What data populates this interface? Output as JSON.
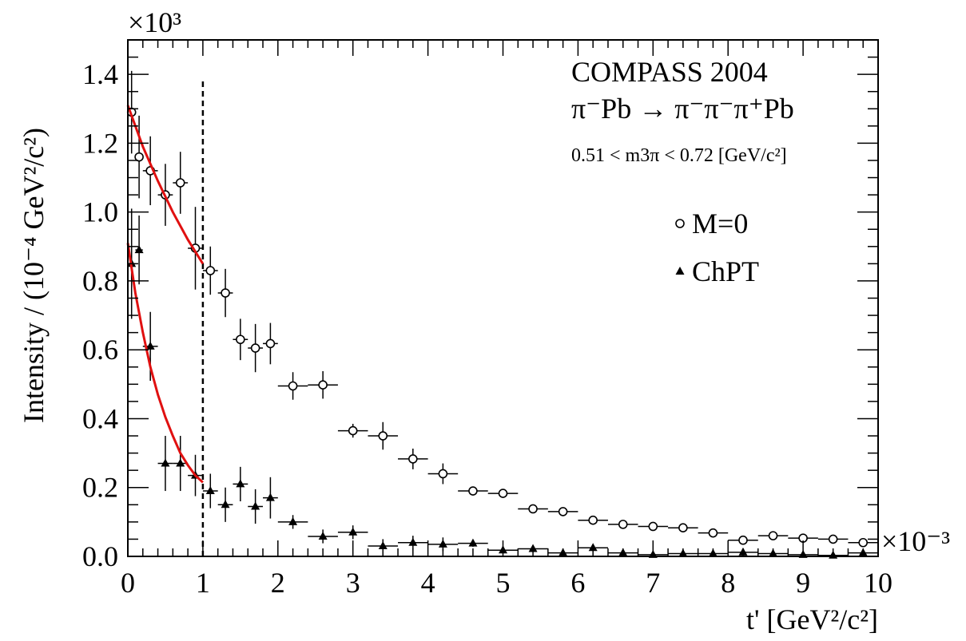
{
  "chart_data": {
    "type": "scatter",
    "title": "",
    "xlabel": "t' [GeV²/c²]",
    "ylabel": "Intensity / (10⁻⁴ GeV²/c²)",
    "x_multiplier": "×10⁻³",
    "y_multiplier": "×10³",
    "xlim": [
      0,
      10
    ],
    "ylim": [
      0,
      1.5
    ],
    "x_ticks": [
      "0",
      "1",
      "2",
      "3",
      "4",
      "5",
      "6",
      "7",
      "8",
      "9",
      "10"
    ],
    "y_ticks": [
      "0.0",
      "0.2",
      "0.4",
      "0.6",
      "0.8",
      "1.0",
      "1.2",
      "1.4"
    ],
    "grid": false,
    "legend_position": "right",
    "annotations": {
      "experiment": "COMPASS 2004",
      "reaction": "π⁻Pb → π⁻π⁻π⁺Pb",
      "mass_range": "0.51 < m3π < 0.72 [GeV/c²]"
    },
    "vline": {
      "x": 1.0,
      "style": "dashed"
    },
    "series": [
      {
        "name": "M=0",
        "marker": "open-circle",
        "points": [
          {
            "x": 0.05,
            "y": 1.29,
            "xerr": 0.05,
            "yerr": 0.12
          },
          {
            "x": 0.15,
            "y": 1.16,
            "xerr": 0.05,
            "yerr": 0.12
          },
          {
            "x": 0.3,
            "y": 1.12,
            "xerr": 0.1,
            "yerr": 0.1
          },
          {
            "x": 0.5,
            "y": 1.05,
            "xerr": 0.1,
            "yerr": 0.09
          },
          {
            "x": 0.7,
            "y": 1.085,
            "xerr": 0.1,
            "yerr": 0.09
          },
          {
            "x": 0.9,
            "y": 0.895,
            "xerr": 0.1,
            "yerr": 0.12
          },
          {
            "x": 1.1,
            "y": 0.83,
            "xerr": 0.1,
            "yerr": 0.07
          },
          {
            "x": 1.3,
            "y": 0.765,
            "xerr": 0.1,
            "yerr": 0.07
          },
          {
            "x": 1.5,
            "y": 0.63,
            "xerr": 0.1,
            "yerr": 0.06
          },
          {
            "x": 1.7,
            "y": 0.605,
            "xerr": 0.1,
            "yerr": 0.07
          },
          {
            "x": 1.9,
            "y": 0.618,
            "xerr": 0.1,
            "yerr": 0.06
          },
          {
            "x": 2.2,
            "y": 0.495,
            "xerr": 0.2,
            "yerr": 0.04
          },
          {
            "x": 2.6,
            "y": 0.498,
            "xerr": 0.2,
            "yerr": 0.04
          },
          {
            "x": 3.0,
            "y": 0.365,
            "xerr": 0.2,
            "yerr": 0.02
          },
          {
            "x": 3.4,
            "y": 0.35,
            "xerr": 0.2,
            "yerr": 0.04
          },
          {
            "x": 3.8,
            "y": 0.283,
            "xerr": 0.2,
            "yerr": 0.03
          },
          {
            "x": 4.2,
            "y": 0.24,
            "xerr": 0.2,
            "yerr": 0.03
          },
          {
            "x": 4.6,
            "y": 0.19,
            "xerr": 0.2,
            "yerr": 0.01
          },
          {
            "x": 5.0,
            "y": 0.183,
            "xerr": 0.2,
            "yerr": 0.01
          },
          {
            "x": 5.4,
            "y": 0.138,
            "xerr": 0.2,
            "yerr": 0.01
          },
          {
            "x": 5.8,
            "y": 0.13,
            "xerr": 0.2,
            "yerr": 0.01
          },
          {
            "x": 6.2,
            "y": 0.105,
            "xerr": 0.2,
            "yerr": 0.01
          },
          {
            "x": 6.6,
            "y": 0.093,
            "xerr": 0.2,
            "yerr": 0.01
          },
          {
            "x": 7.0,
            "y": 0.087,
            "xerr": 0.2,
            "yerr": 0.01
          },
          {
            "x": 7.4,
            "y": 0.083,
            "xerr": 0.2,
            "yerr": 0.01
          },
          {
            "x": 7.8,
            "y": 0.068,
            "xerr": 0.2,
            "yerr": 0.01
          },
          {
            "x": 8.2,
            "y": 0.047,
            "xerr": 0.2,
            "yerr": 0.01
          },
          {
            "x": 8.6,
            "y": 0.06,
            "xerr": 0.2,
            "yerr": 0.01
          },
          {
            "x": 9.0,
            "y": 0.053,
            "xerr": 0.2,
            "yerr": 0.01
          },
          {
            "x": 9.4,
            "y": 0.05,
            "xerr": 0.2,
            "yerr": 0.01
          },
          {
            "x": 9.8,
            "y": 0.04,
            "xerr": 0.2,
            "yerr": 0.01
          }
        ]
      },
      {
        "name": "ChPT",
        "marker": "filled-triangle",
        "points": [
          {
            "x": 0.05,
            "y": 0.85,
            "xerr": 0.05,
            "yerr": 0.16
          },
          {
            "x": 0.15,
            "y": 0.89,
            "xerr": 0.05,
            "yerr": 0.1
          },
          {
            "x": 0.3,
            "y": 0.61,
            "xerr": 0.1,
            "yerr": 0.1
          },
          {
            "x": 0.5,
            "y": 0.27,
            "xerr": 0.1,
            "yerr": 0.08
          },
          {
            "x": 0.7,
            "y": 0.27,
            "xerr": 0.1,
            "yerr": 0.08
          },
          {
            "x": 0.9,
            "y": 0.235,
            "xerr": 0.1,
            "yerr": 0.06
          },
          {
            "x": 1.1,
            "y": 0.19,
            "xerr": 0.1,
            "yerr": 0.05
          },
          {
            "x": 1.3,
            "y": 0.15,
            "xerr": 0.1,
            "yerr": 0.05
          },
          {
            "x": 1.5,
            "y": 0.21,
            "xerr": 0.1,
            "yerr": 0.05
          },
          {
            "x": 1.7,
            "y": 0.145,
            "xerr": 0.1,
            "yerr": 0.05
          },
          {
            "x": 1.9,
            "y": 0.17,
            "xerr": 0.1,
            "yerr": 0.06
          },
          {
            "x": 2.2,
            "y": 0.1,
            "xerr": 0.2,
            "yerr": 0.02
          },
          {
            "x": 2.6,
            "y": 0.058,
            "xerr": 0.2,
            "yerr": 0.02
          },
          {
            "x": 3.0,
            "y": 0.07,
            "xerr": 0.2,
            "yerr": 0.02
          },
          {
            "x": 3.4,
            "y": 0.03,
            "xerr": 0.2,
            "yerr": 0.02
          },
          {
            "x": 3.8,
            "y": 0.04,
            "xerr": 0.2,
            "yerr": 0.02
          },
          {
            "x": 4.2,
            "y": 0.035,
            "xerr": 0.2,
            "yerr": 0.02
          },
          {
            "x": 4.6,
            "y": 0.038,
            "xerr": 0.2,
            "yerr": 0.01
          },
          {
            "x": 5.0,
            "y": 0.018,
            "xerr": 0.2,
            "yerr": 0.01
          },
          {
            "x": 5.4,
            "y": 0.022,
            "xerr": 0.2,
            "yerr": 0.01
          },
          {
            "x": 5.8,
            "y": 0.01,
            "xerr": 0.2,
            "yerr": 0.01
          },
          {
            "x": 6.2,
            "y": 0.025,
            "xerr": 0.2,
            "yerr": 0.01
          },
          {
            "x": 6.6,
            "y": 0.01,
            "xerr": 0.2,
            "yerr": 0.01
          },
          {
            "x": 7.0,
            "y": 0.005,
            "xerr": 0.2,
            "yerr": 0.01
          },
          {
            "x": 7.4,
            "y": 0.008,
            "xerr": 0.2,
            "yerr": 0.01
          },
          {
            "x": 7.8,
            "y": 0.008,
            "xerr": 0.2,
            "yerr": 0.01
          },
          {
            "x": 8.2,
            "y": 0.012,
            "xerr": 0.2,
            "yerr": 0.01
          },
          {
            "x": 8.6,
            "y": 0.008,
            "xerr": 0.2,
            "yerr": 0.01
          },
          {
            "x": 9.0,
            "y": 0.005,
            "xerr": 0.2,
            "yerr": 0.01
          },
          {
            "x": 9.4,
            "y": 0.003,
            "xerr": 0.2,
            "yerr": 0.01
          },
          {
            "x": 9.8,
            "y": 0.01,
            "xerr": 0.2,
            "yerr": 0.01
          }
        ]
      }
    ],
    "fits": [
      {
        "series": "M=0",
        "color": "#e01010",
        "x_range": [
          0,
          1
        ],
        "points": [
          [
            0,
            1.31
          ],
          [
            0.2,
            1.19
          ],
          [
            0.4,
            1.09
          ],
          [
            0.6,
            1.0
          ],
          [
            0.8,
            0.92
          ],
          [
            1.0,
            0.85
          ]
        ]
      },
      {
        "series": "ChPT",
        "color": "#e01010",
        "x_range": [
          0,
          1
        ],
        "points": [
          [
            0,
            0.91
          ],
          [
            0.1,
            0.765
          ],
          [
            0.2,
            0.65
          ],
          [
            0.3,
            0.55
          ],
          [
            0.4,
            0.47
          ],
          [
            0.5,
            0.405
          ],
          [
            0.6,
            0.35
          ],
          [
            0.7,
            0.3
          ],
          [
            0.8,
            0.265
          ],
          [
            0.9,
            0.235
          ],
          [
            1.0,
            0.215
          ]
        ]
      }
    ]
  }
}
